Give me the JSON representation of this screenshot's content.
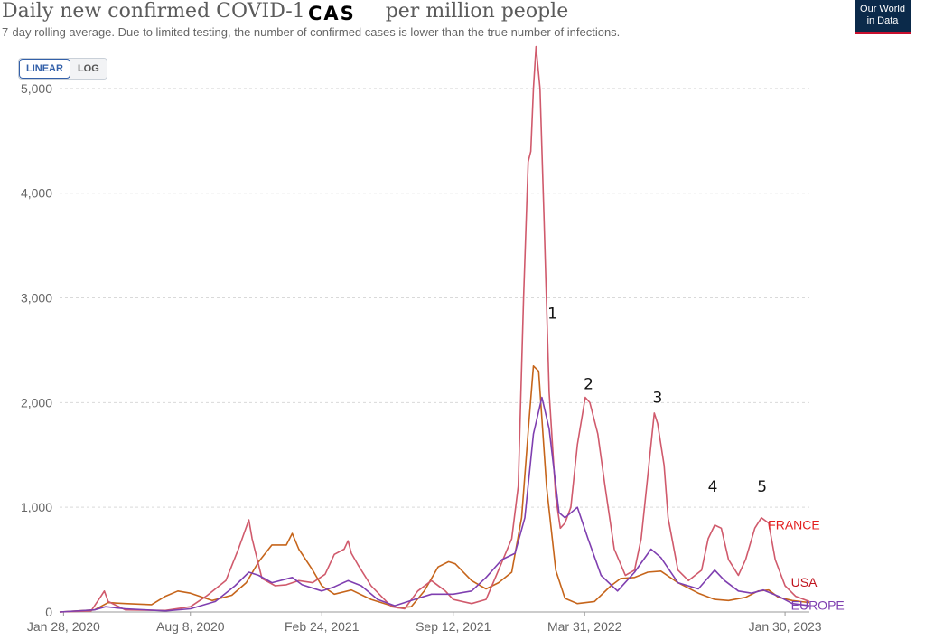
{
  "header": {
    "title": "Daily new confirmed COVID-19 cases per million people",
    "title_overlay": "CAS",
    "subtitle": "7-day rolling average. Due to limited testing, the number of confirmed cases is lower than the true number of infections.",
    "logo_line1": "Our World",
    "logo_line2": "in Data"
  },
  "controls": {
    "linear_label": "LINEAR",
    "log_label": "LOG",
    "selected": "LINEAR"
  },
  "colors": {
    "france": "#d05a6c",
    "usa": "#c6651b",
    "europe": "#7f3fb0",
    "france_label": "#e32020",
    "usa_label": "#c0141e",
    "europe_label": "#7f3fb0",
    "grid": "#d9d9d9",
    "accent": "#3360a9"
  },
  "chart_data": {
    "type": "line",
    "x_axis_type": "date",
    "xlim": [
      "2020-01-22",
      "2023-03-08"
    ],
    "ylim": [
      0,
      5500
    ],
    "yticks": [
      0,
      1000,
      2000,
      3000,
      4000,
      5000
    ],
    "ytick_labels": [
      "0",
      "1,000",
      "2,000",
      "3,000",
      "4,000",
      "5,000"
    ],
    "xticks": [
      "2020-01-28",
      "2020-08-08",
      "2021-02-24",
      "2021-09-12",
      "2022-03-31",
      "2023-01-30"
    ],
    "xtick_labels": [
      "Jan 28, 2020",
      "Aug 8, 2020",
      "Feb 24, 2021",
      "Sep 12, 2021",
      "Mar 31, 2022",
      "Jan 30, 2023"
    ],
    "grid": true,
    "series": [
      {
        "name": "FRANCE",
        "color": "#d05a6c",
        "points": [
          [
            "2020-01-22",
            0
          ],
          [
            "2020-03-10",
            10
          ],
          [
            "2020-03-25",
            150
          ],
          [
            "2020-03-30",
            200
          ],
          [
            "2020-04-05",
            100
          ],
          [
            "2020-05-01",
            20
          ],
          [
            "2020-07-01",
            15
          ],
          [
            "2020-08-08",
            50
          ],
          [
            "2020-09-01",
            150
          ],
          [
            "2020-10-01",
            300
          ],
          [
            "2020-10-20",
            600
          ],
          [
            "2020-11-05",
            880
          ],
          [
            "2020-11-10",
            700
          ],
          [
            "2020-11-25",
            320
          ],
          [
            "2020-12-15",
            250
          ],
          [
            "2021-01-01",
            260
          ],
          [
            "2021-01-20",
            300
          ],
          [
            "2021-02-10",
            280
          ],
          [
            "2021-03-01",
            360
          ],
          [
            "2021-03-15",
            550
          ],
          [
            "2021-03-30",
            600
          ],
          [
            "2021-04-05",
            680
          ],
          [
            "2021-04-10",
            560
          ],
          [
            "2021-04-20",
            450
          ],
          [
            "2021-05-10",
            250
          ],
          [
            "2021-06-10",
            50
          ],
          [
            "2021-06-30",
            30
          ],
          [
            "2021-07-20",
            200
          ],
          [
            "2021-08-10",
            300
          ],
          [
            "2021-08-31",
            200
          ],
          [
            "2021-09-12",
            120
          ],
          [
            "2021-10-10",
            80
          ],
          [
            "2021-11-01",
            120
          ],
          [
            "2021-11-20",
            400
          ],
          [
            "2021-12-10",
            700
          ],
          [
            "2021-12-20",
            1200
          ],
          [
            "2021-12-28",
            3000
          ],
          [
            "2022-01-04",
            4300
          ],
          [
            "2022-01-08",
            4400
          ],
          [
            "2022-01-12",
            5000
          ],
          [
            "2022-01-16",
            5400
          ],
          [
            "2022-01-22",
            5000
          ],
          [
            "2022-01-28",
            3800
          ],
          [
            "2022-02-05",
            2100
          ],
          [
            "2022-02-15",
            1100
          ],
          [
            "2022-02-22",
            800
          ],
          [
            "2022-03-01",
            850
          ],
          [
            "2022-03-10",
            1000
          ],
          [
            "2022-03-20",
            1600
          ],
          [
            "2022-04-01",
            2050
          ],
          [
            "2022-04-08",
            2000
          ],
          [
            "2022-04-20",
            1700
          ],
          [
            "2022-05-01",
            1200
          ],
          [
            "2022-05-15",
            600
          ],
          [
            "2022-06-01",
            350
          ],
          [
            "2022-06-15",
            400
          ],
          [
            "2022-06-25",
            700
          ],
          [
            "2022-07-05",
            1300
          ],
          [
            "2022-07-15",
            1900
          ],
          [
            "2022-07-20",
            1800
          ],
          [
            "2022-07-30",
            1400
          ],
          [
            "2022-08-05",
            900
          ],
          [
            "2022-08-20",
            400
          ],
          [
            "2022-09-05",
            300
          ],
          [
            "2022-09-25",
            400
          ],
          [
            "2022-10-05",
            700
          ],
          [
            "2022-10-15",
            830
          ],
          [
            "2022-10-25",
            800
          ],
          [
            "2022-11-05",
            500
          ],
          [
            "2022-11-20",
            350
          ],
          [
            "2022-12-01",
            500
          ],
          [
            "2022-12-15",
            800
          ],
          [
            "2022-12-25",
            900
          ],
          [
            "2023-01-05",
            850
          ],
          [
            "2023-01-15",
            500
          ],
          [
            "2023-01-30",
            250
          ],
          [
            "2023-02-15",
            150
          ],
          [
            "2023-03-08",
            100
          ]
        ]
      },
      {
        "name": "USA",
        "color": "#c6651b",
        "points": [
          [
            "2020-01-22",
            0
          ],
          [
            "2020-03-15",
            20
          ],
          [
            "2020-04-05",
            90
          ],
          [
            "2020-05-01",
            80
          ],
          [
            "2020-06-10",
            70
          ],
          [
            "2020-07-01",
            150
          ],
          [
            "2020-07-20",
            200
          ],
          [
            "2020-08-08",
            180
          ],
          [
            "2020-09-10",
            110
          ],
          [
            "2020-10-10",
            160
          ],
          [
            "2020-11-01",
            280
          ],
          [
            "2020-11-20",
            480
          ],
          [
            "2020-12-10",
            640
          ],
          [
            "2021-01-01",
            640
          ],
          [
            "2021-01-10",
            750
          ],
          [
            "2021-01-20",
            600
          ],
          [
            "2021-02-10",
            400
          ],
          [
            "2021-02-24",
            250
          ],
          [
            "2021-03-15",
            170
          ],
          [
            "2021-04-10",
            210
          ],
          [
            "2021-05-10",
            120
          ],
          [
            "2021-06-20",
            40
          ],
          [
            "2021-07-10",
            50
          ],
          [
            "2021-07-30",
            200
          ],
          [
            "2021-08-20",
            430
          ],
          [
            "2021-09-05",
            480
          ],
          [
            "2021-09-15",
            460
          ],
          [
            "2021-10-10",
            300
          ],
          [
            "2021-11-01",
            220
          ],
          [
            "2021-11-20",
            280
          ],
          [
            "2021-12-10",
            380
          ],
          [
            "2021-12-25",
            900
          ],
          [
            "2022-01-05",
            1800
          ],
          [
            "2022-01-12",
            2350
          ],
          [
            "2022-01-20",
            2300
          ],
          [
            "2022-02-01",
            1200
          ],
          [
            "2022-02-15",
            400
          ],
          [
            "2022-03-01",
            130
          ],
          [
            "2022-03-20",
            80
          ],
          [
            "2022-04-15",
            100
          ],
          [
            "2022-05-10",
            250
          ],
          [
            "2022-05-25",
            320
          ],
          [
            "2022-06-15",
            330
          ],
          [
            "2022-07-05",
            380
          ],
          [
            "2022-07-25",
            390
          ],
          [
            "2022-08-20",
            280
          ],
          [
            "2022-09-20",
            180
          ],
          [
            "2022-10-15",
            120
          ],
          [
            "2022-11-05",
            110
          ],
          [
            "2022-12-01",
            140
          ],
          [
            "2022-12-20",
            200
          ],
          [
            "2023-01-05",
            210
          ],
          [
            "2023-01-20",
            140
          ],
          [
            "2023-02-10",
            110
          ],
          [
            "2023-03-08",
            90
          ]
        ]
      },
      {
        "name": "EUROPE",
        "color": "#7f3fb0",
        "points": [
          [
            "2020-01-22",
            0
          ],
          [
            "2020-03-15",
            20
          ],
          [
            "2020-04-01",
            50
          ],
          [
            "2020-05-01",
            30
          ],
          [
            "2020-07-01",
            10
          ],
          [
            "2020-08-08",
            30
          ],
          [
            "2020-09-15",
            100
          ],
          [
            "2020-10-15",
            250
          ],
          [
            "2020-11-05",
            380
          ],
          [
            "2020-11-20",
            350
          ],
          [
            "2020-12-10",
            280
          ],
          [
            "2021-01-10",
            330
          ],
          [
            "2021-01-25",
            260
          ],
          [
            "2021-02-24",
            200
          ],
          [
            "2021-03-15",
            240
          ],
          [
            "2021-04-05",
            300
          ],
          [
            "2021-04-25",
            250
          ],
          [
            "2021-05-20",
            120
          ],
          [
            "2021-06-15",
            60
          ],
          [
            "2021-07-15",
            120
          ],
          [
            "2021-08-10",
            170
          ],
          [
            "2021-09-12",
            170
          ],
          [
            "2021-10-10",
            200
          ],
          [
            "2021-11-01",
            330
          ],
          [
            "2021-11-25",
            500
          ],
          [
            "2021-12-15",
            560
          ],
          [
            "2021-12-30",
            900
          ],
          [
            "2022-01-12",
            1700
          ],
          [
            "2022-01-25",
            2050
          ],
          [
            "2022-02-05",
            1750
          ],
          [
            "2022-02-20",
            950
          ],
          [
            "2022-03-01",
            900
          ],
          [
            "2022-03-20",
            1000
          ],
          [
            "2022-04-05",
            700
          ],
          [
            "2022-04-25",
            350
          ],
          [
            "2022-05-20",
            200
          ],
          [
            "2022-06-15",
            380
          ],
          [
            "2022-07-10",
            600
          ],
          [
            "2022-07-25",
            520
          ],
          [
            "2022-08-20",
            280
          ],
          [
            "2022-09-20",
            220
          ],
          [
            "2022-10-15",
            400
          ],
          [
            "2022-10-30",
            300
          ],
          [
            "2022-11-20",
            200
          ],
          [
            "2022-12-10",
            180
          ],
          [
            "2022-12-28",
            210
          ],
          [
            "2023-01-20",
            150
          ],
          [
            "2023-02-10",
            80
          ],
          [
            "2023-03-08",
            60
          ]
        ]
      }
    ],
    "annotations": [
      {
        "text": "1",
        "x": "2022-02-10",
        "y": 2800
      },
      {
        "text": "2",
        "x": "2022-04-06",
        "y": 2130
      },
      {
        "text": "3",
        "x": "2022-07-20",
        "y": 2000
      },
      {
        "text": "4",
        "x": "2022-10-12",
        "y": 1150
      },
      {
        "text": "5",
        "x": "2022-12-26",
        "y": 1150
      }
    ],
    "line_labels": [
      {
        "text": "FRANCE",
        "x": "2023-01-04",
        "y": 790
      },
      {
        "text": "USA",
        "x": "2023-02-08",
        "y": 240
      },
      {
        "text": "EUROPE",
        "x": "2023-02-08",
        "y": 20
      }
    ]
  }
}
